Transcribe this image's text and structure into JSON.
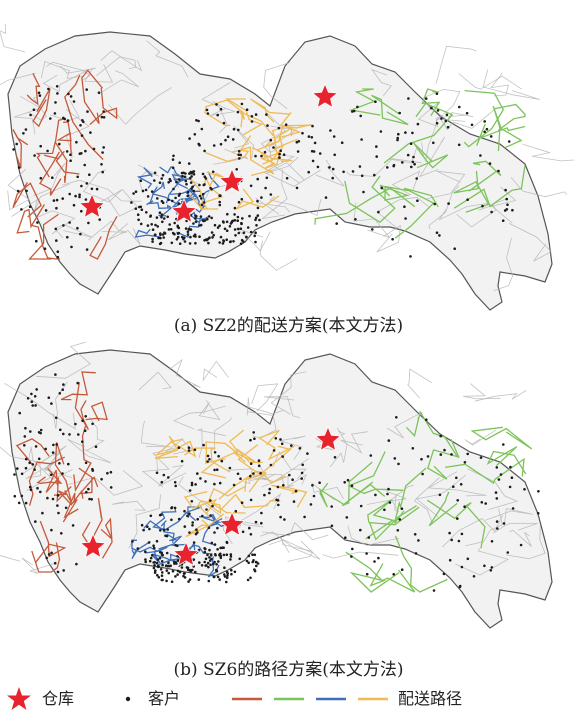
{
  "maps": [
    {
      "id": "a",
      "caption": "(a) SZ2的配送方案(本文方法)"
    },
    {
      "id": "b",
      "caption": "(b) SZ6的路径方案(本文方法)"
    }
  ],
  "legend": {
    "warehouse_label": "仓库",
    "customer_label": "客户",
    "route_label": "配送路径"
  },
  "colors": {
    "warehouse": "#e8232d",
    "customer": "#1c1c1c",
    "route_1": "#c45a3a",
    "route_2": "#7dc35b",
    "route_3": "#3e6fb8",
    "route_4": "#f0bb55",
    "road": "#b3b3b3",
    "land": "#f2f2f2",
    "outline": "#555555"
  },
  "icons": {
    "warehouse": "red-star-icon",
    "customer": "black-dot-icon"
  }
}
